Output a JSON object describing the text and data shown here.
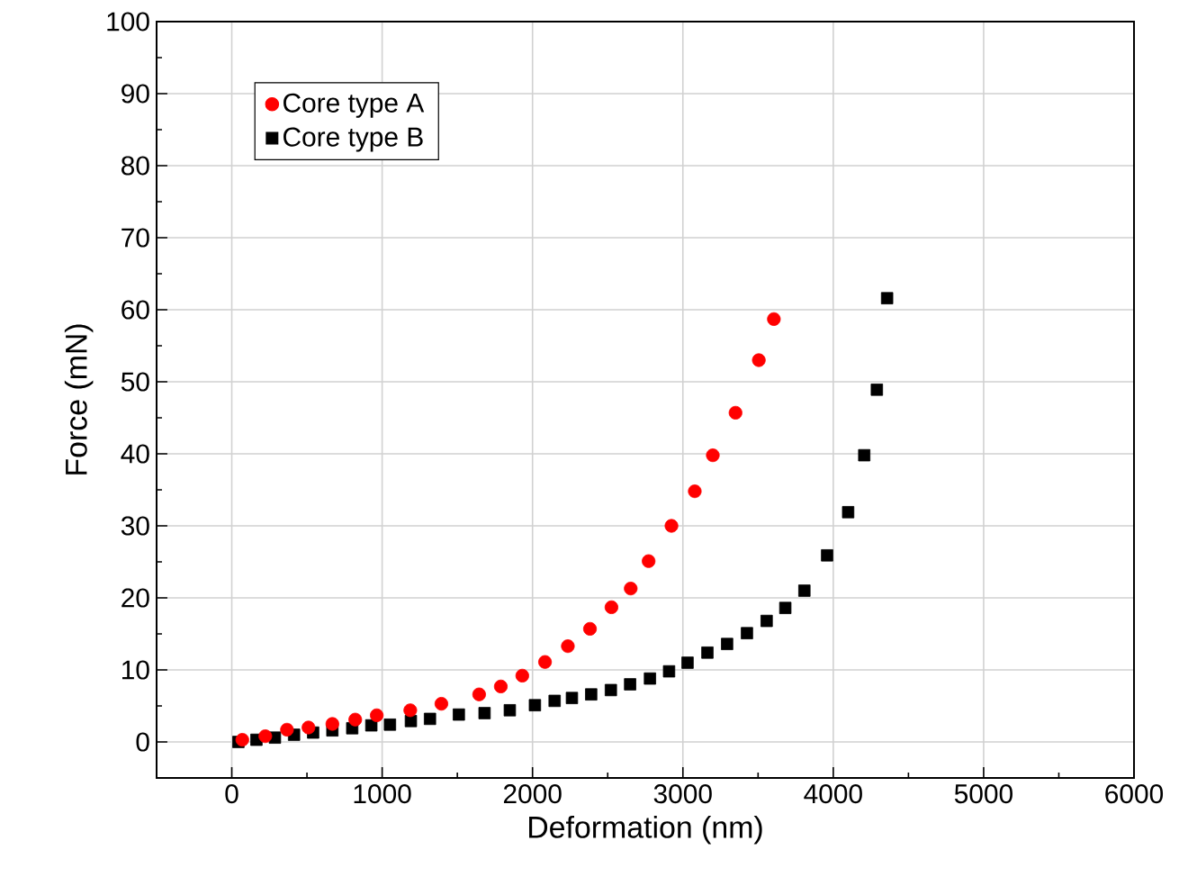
{
  "chart_data": {
    "type": "scatter",
    "xlabel": "Deformation (nm)",
    "ylabel": "Force (mN)",
    "xlim": [
      -500,
      6000
    ],
    "ylim": [
      -5,
      100
    ],
    "xticks": [
      0,
      1000,
      2000,
      3000,
      4000,
      5000,
      6000
    ],
    "yticks": [
      0,
      10,
      20,
      30,
      40,
      50,
      60,
      70,
      80,
      90,
      100
    ],
    "grid": true,
    "legend": "top left",
    "series": [
      {
        "name": "Core type A",
        "color": "#ff0000",
        "marker": "circle",
        "x": [
          70,
          223,
          367,
          510,
          669,
          821,
          964,
          1187,
          1394,
          1645,
          1789,
          1932,
          2083,
          2235,
          2382,
          2525,
          2653,
          2772,
          2924,
          3079,
          3199,
          3350,
          3505,
          3605
        ],
        "values": [
          0.3,
          0.8,
          1.7,
          2.0,
          2.5,
          3.1,
          3.7,
          4.4,
          5.3,
          6.6,
          7.7,
          9.2,
          11.1,
          13.3,
          15.7,
          18.7,
          21.3,
          25.1,
          30.0,
          34.8,
          39.8,
          45.7,
          53.0,
          58.7
        ]
      },
      {
        "name": "Core type B",
        "color": "#000000",
        "marker": "square",
        "x": [
          44,
          164,
          287,
          414,
          541,
          669,
          801,
          928,
          1052,
          1191,
          1318,
          1510,
          1681,
          1849,
          2016,
          2147,
          2262,
          2390,
          2521,
          2649,
          2781,
          2908,
          3031,
          3163,
          3294,
          3426,
          3557,
          3681,
          3808,
          3959,
          4099,
          4206,
          4290,
          4358
        ],
        "values": [
          0.0,
          0.3,
          0.6,
          1.0,
          1.3,
          1.6,
          1.9,
          2.3,
          2.4,
          2.9,
          3.2,
          3.8,
          4.0,
          4.4,
          5.1,
          5.7,
          6.1,
          6.6,
          7.2,
          8.0,
          8.8,
          9.8,
          11.0,
          12.4,
          13.6,
          15.1,
          16.8,
          18.6,
          21.0,
          25.9,
          31.9,
          39.8,
          48.9,
          61.6
        ]
      }
    ]
  }
}
